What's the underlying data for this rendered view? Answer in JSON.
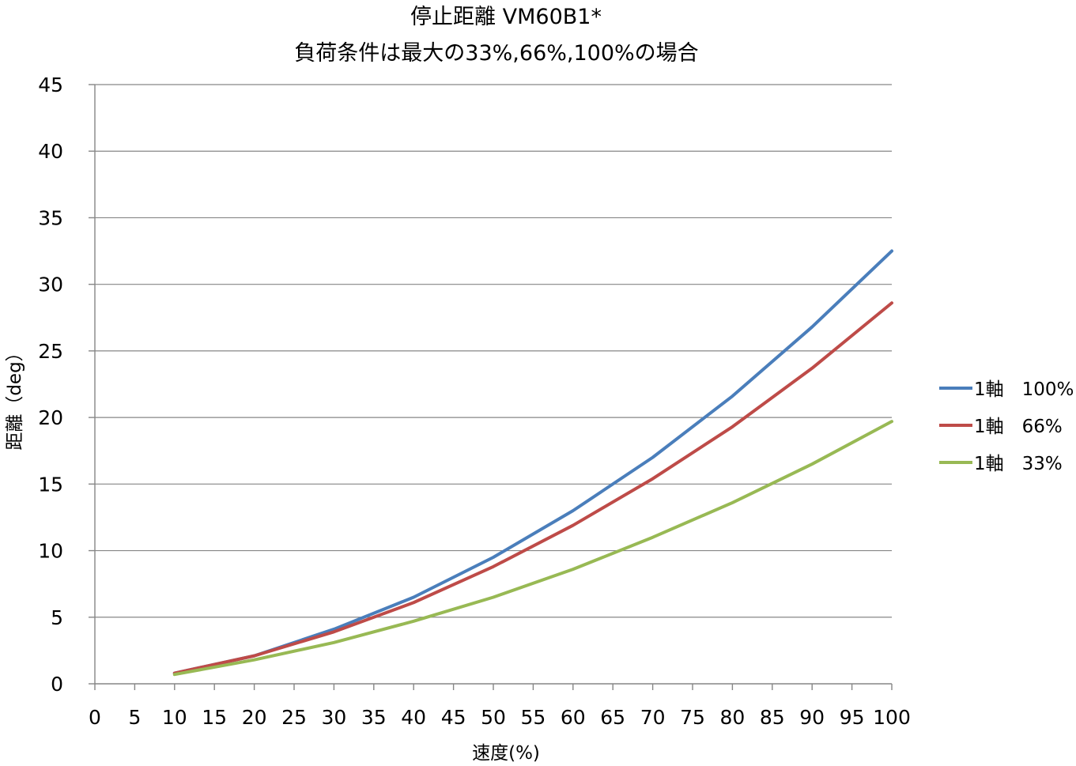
{
  "chart_data": {
    "type": "line",
    "title": "停止距離 VM60B1*",
    "subtitle": "負荷条件は最大の33%,66%,100%の場合",
    "xlabel": "速度(%)",
    "ylabel": "距離（deg）",
    "xlim": [
      0,
      100
    ],
    "ylim": [
      0,
      45
    ],
    "x_ticks": [
      "0",
      "5",
      "10",
      "15",
      "20",
      "25",
      "30",
      "35",
      "40",
      "45",
      "50",
      "55",
      "60",
      "65",
      "70",
      "75",
      "80",
      "85",
      "90",
      "95",
      "100"
    ],
    "y_ticks": [
      "0",
      "5",
      "10",
      "15",
      "20",
      "25",
      "30",
      "35",
      "40",
      "45"
    ],
    "grid": "horizontal",
    "legend": "right",
    "x": [
      10,
      20,
      30,
      40,
      50,
      60,
      70,
      80,
      90,
      100
    ],
    "series": [
      {
        "name": "1軸　100%",
        "color": "#4a7ebb",
        "values": [
          0.8,
          2.1,
          4.1,
          6.5,
          9.5,
          13.0,
          17.0,
          21.6,
          26.8,
          32.5
        ]
      },
      {
        "name": "1軸　66%",
        "color": "#be4b48",
        "values": [
          0.8,
          2.1,
          3.9,
          6.1,
          8.8,
          11.9,
          15.4,
          19.3,
          23.7,
          28.6
        ]
      },
      {
        "name": "1軸　33%",
        "color": "#98b954",
        "values": [
          0.7,
          1.8,
          3.1,
          4.7,
          6.5,
          8.6,
          11.0,
          13.6,
          16.5,
          19.7
        ]
      }
    ]
  }
}
